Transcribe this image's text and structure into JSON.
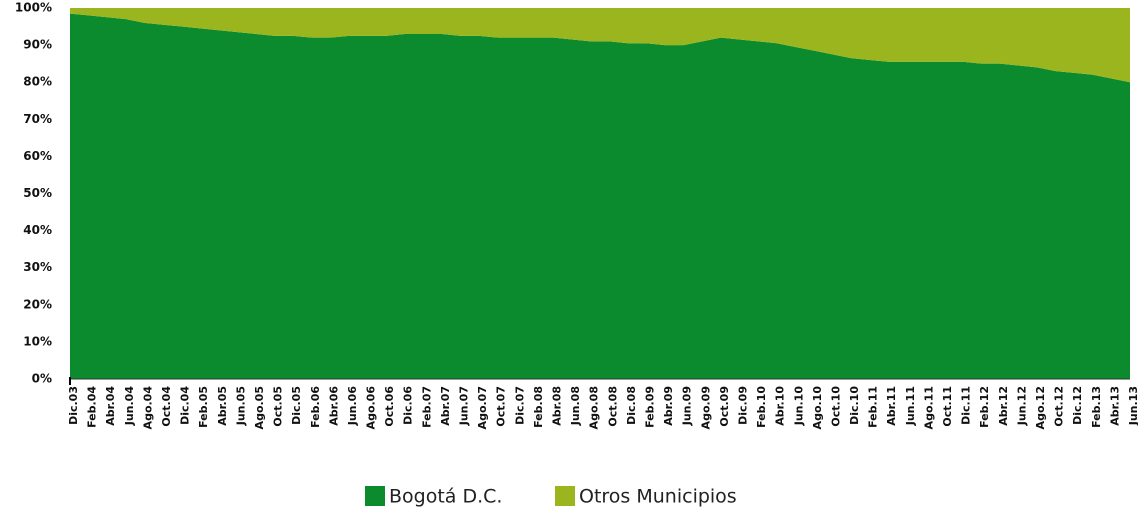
{
  "chart_data": {
    "type": "stacked_area_100",
    "categories": [
      "Dic.03",
      "Feb.04",
      "Abr.04",
      "Jun.04",
      "Ago.04",
      "Oct.04",
      "Dic.04",
      "Feb.05",
      "Abr.05",
      "Jun.05",
      "Ago.05",
      "Oct.05",
      "Dic.05",
      "Feb.06",
      "Abr.06",
      "Jun.06",
      "Ago.06",
      "Oct.06",
      "Dic.06",
      "Feb.07",
      "Abr.07",
      "Jun.07",
      "Ago.07",
      "Oct.07",
      "Dic.07",
      "Feb.08",
      "Abr.08",
      "Jun.08",
      "Ago.08",
      "Oct.08",
      "Dic.08",
      "Feb.09",
      "Abr.09",
      "Jun.09",
      "Ago.09",
      "Oct.09",
      "Dic.09",
      "Feb.10",
      "Abr.10",
      "Jun.10",
      "Ago.10",
      "Oct.10",
      "Dic.10",
      "Feb.11",
      "Abr.11",
      "Jun.11",
      "Ago.11",
      "Oct.11",
      "Dic.11",
      "Feb.12",
      "Abr.12",
      "Jun.12",
      "Ago.12",
      "Oct.12",
      "Dic.12",
      "Feb.13",
      "Abr.13",
      "Jun.13"
    ],
    "series": [
      {
        "name": "Bogotá D.C.",
        "color": "#0b8a2e",
        "values": [
          98.5,
          98,
          97.5,
          97,
          96,
          95.5,
          95,
          94.5,
          94,
          93.5,
          93,
          92.5,
          92.5,
          92,
          92,
          92.5,
          92.5,
          92.5,
          93,
          93,
          93,
          92.5,
          92.5,
          92,
          92,
          92,
          92,
          91.5,
          91,
          91,
          90.5,
          90.5,
          90,
          90,
          91,
          92,
          91.5,
          91,
          90.5,
          89.5,
          88.5,
          87.5,
          86.5,
          86,
          85.5,
          85.5,
          85.5,
          85.5,
          85.5,
          85,
          85,
          84.5,
          84,
          83,
          82.5,
          82,
          81,
          80
        ]
      },
      {
        "name": "Otros Municipios",
        "color": "#9ab51e",
        "values": [
          1.5,
          2,
          2.5,
          3,
          4,
          4.5,
          5,
          5.5,
          6,
          6.5,
          7,
          7.5,
          7.5,
          8,
          8,
          7.5,
          7.5,
          7.5,
          7,
          7,
          7,
          7.5,
          7.5,
          8,
          8,
          8,
          8,
          8.5,
          9,
          9,
          9.5,
          9.5,
          10,
          10,
          9,
          8,
          8.5,
          9,
          9.5,
          10.5,
          11.5,
          12.5,
          13.5,
          14,
          14.5,
          14.5,
          14.5,
          14.5,
          14.5,
          15,
          15,
          15.5,
          16,
          17,
          17.5,
          18,
          19,
          20
        ]
      }
    ],
    "ylim": [
      0,
      100
    ],
    "yticks": [
      {
        "value": 0,
        "label": "0%"
      },
      {
        "value": 10,
        "label": "10%"
      },
      {
        "value": 20,
        "label": "20%"
      },
      {
        "value": 30,
        "label": "30%"
      },
      {
        "value": 40,
        "label": "40%"
      },
      {
        "value": 50,
        "label": "50%"
      },
      {
        "value": 60,
        "label": "60%"
      },
      {
        "value": 70,
        "label": "70%"
      },
      {
        "value": 80,
        "label": "80%"
      },
      {
        "value": 90,
        "label": "90%"
      },
      {
        "value": 100,
        "label": "100%"
      }
    ]
  }
}
